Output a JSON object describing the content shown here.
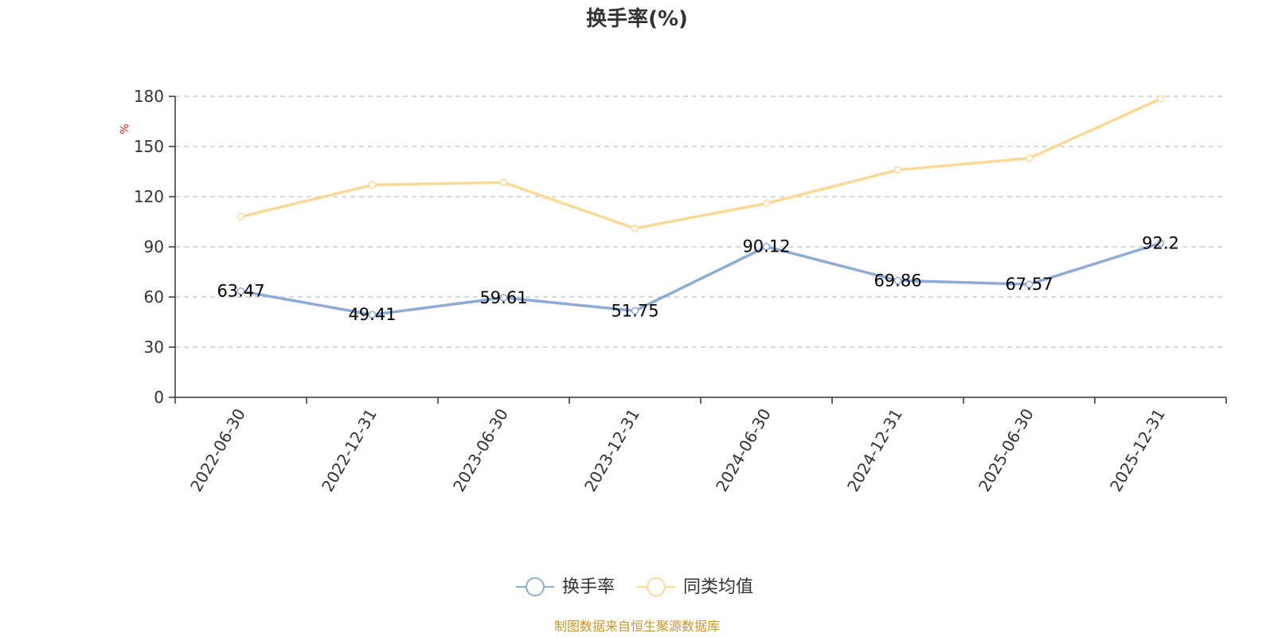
{
  "chart_data": {
    "type": "line",
    "title": "换手率(%)",
    "ylabel": "%",
    "ylim": [
      0,
      180
    ],
    "yticks": [
      0,
      30,
      60,
      90,
      120,
      150,
      180
    ],
    "categories": [
      "2022-06-30",
      "2022-12-31",
      "2023-06-30",
      "2023-12-31",
      "2024-06-30",
      "2024-12-31",
      "2025-06-30",
      "2025-12-31"
    ],
    "grid": "horizontal-dashed",
    "legend_position": "bottom-center",
    "series": [
      {
        "name": "换手率",
        "color": "#8eabd6",
        "values": [
          63.47,
          49.41,
          59.61,
          51.75,
          90.12,
          69.86,
          67.57,
          92.2
        ],
        "labels": [
          "63.47",
          "49.41",
          "59.61",
          "51.75",
          "90.12",
          "69.86",
          "67.57",
          "92.2"
        ]
      },
      {
        "name": "同类均值",
        "color": "#fbd995",
        "values": [
          108,
          127,
          128.5,
          101,
          116,
          136,
          143,
          178.5
        ]
      }
    ]
  },
  "source": {
    "text": "制图数据来自恒生聚源数据库",
    "color": "#c8962a"
  },
  "ylabel_color": "#e02020"
}
